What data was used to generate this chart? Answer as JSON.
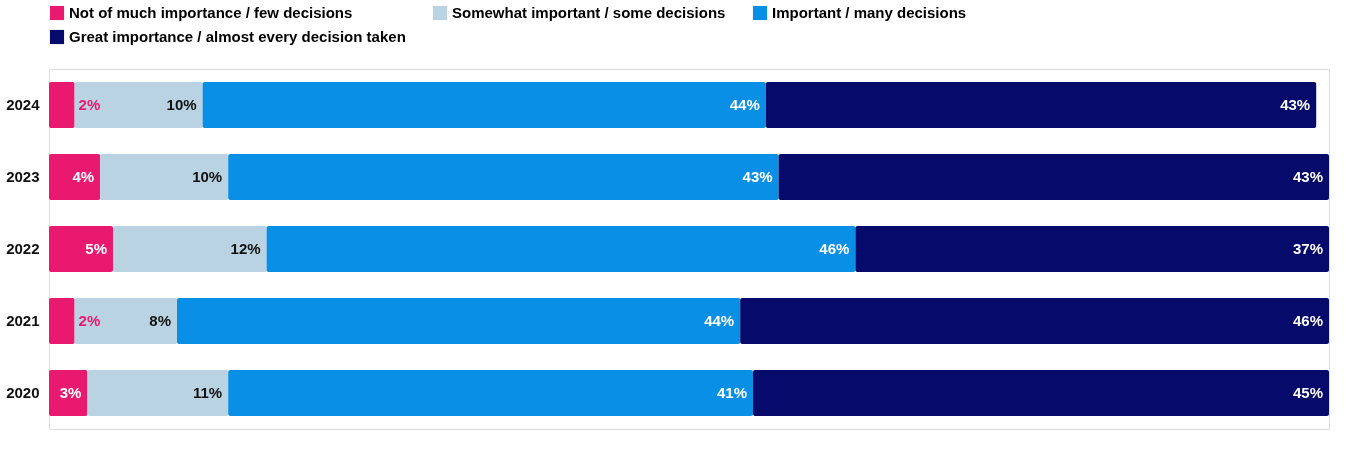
{
  "chart_data": {
    "type": "bar",
    "orientation": "horizontal",
    "stacked": true,
    "legend": "top",
    "grid": false,
    "tick_labels": "y",
    "categories": [
      "2024",
      "2023",
      "2022",
      "2021",
      "2020"
    ],
    "series": [
      {
        "name": "Not of much importance / few decisions",
        "color": "#e8196e",
        "values": [
          2,
          4,
          5,
          2,
          3
        ],
        "value_labels": [
          "2%",
          "4%",
          "5%",
          "2%",
          "3%"
        ]
      },
      {
        "name": "Somewhat important / some decisions",
        "color": "#b9d3e3",
        "values": [
          10,
          10,
          12,
          8,
          11
        ],
        "value_labels": [
          "10%",
          "10%",
          "12%",
          "8%",
          "11%"
        ]
      },
      {
        "name": "Important / many decisions",
        "color": "#0a8fe6",
        "values": [
          44,
          43,
          46,
          44,
          41
        ],
        "value_labels": [
          "44%",
          "43%",
          "46%",
          "44%",
          "41%"
        ]
      },
      {
        "name": "Great importance / almost every decision taken",
        "color": "#050a6b",
        "values": [
          43,
          43,
          37,
          46,
          45
        ],
        "value_labels": [
          "43%",
          "43%",
          "37%",
          "46%",
          "45%"
        ]
      }
    ]
  }
}
